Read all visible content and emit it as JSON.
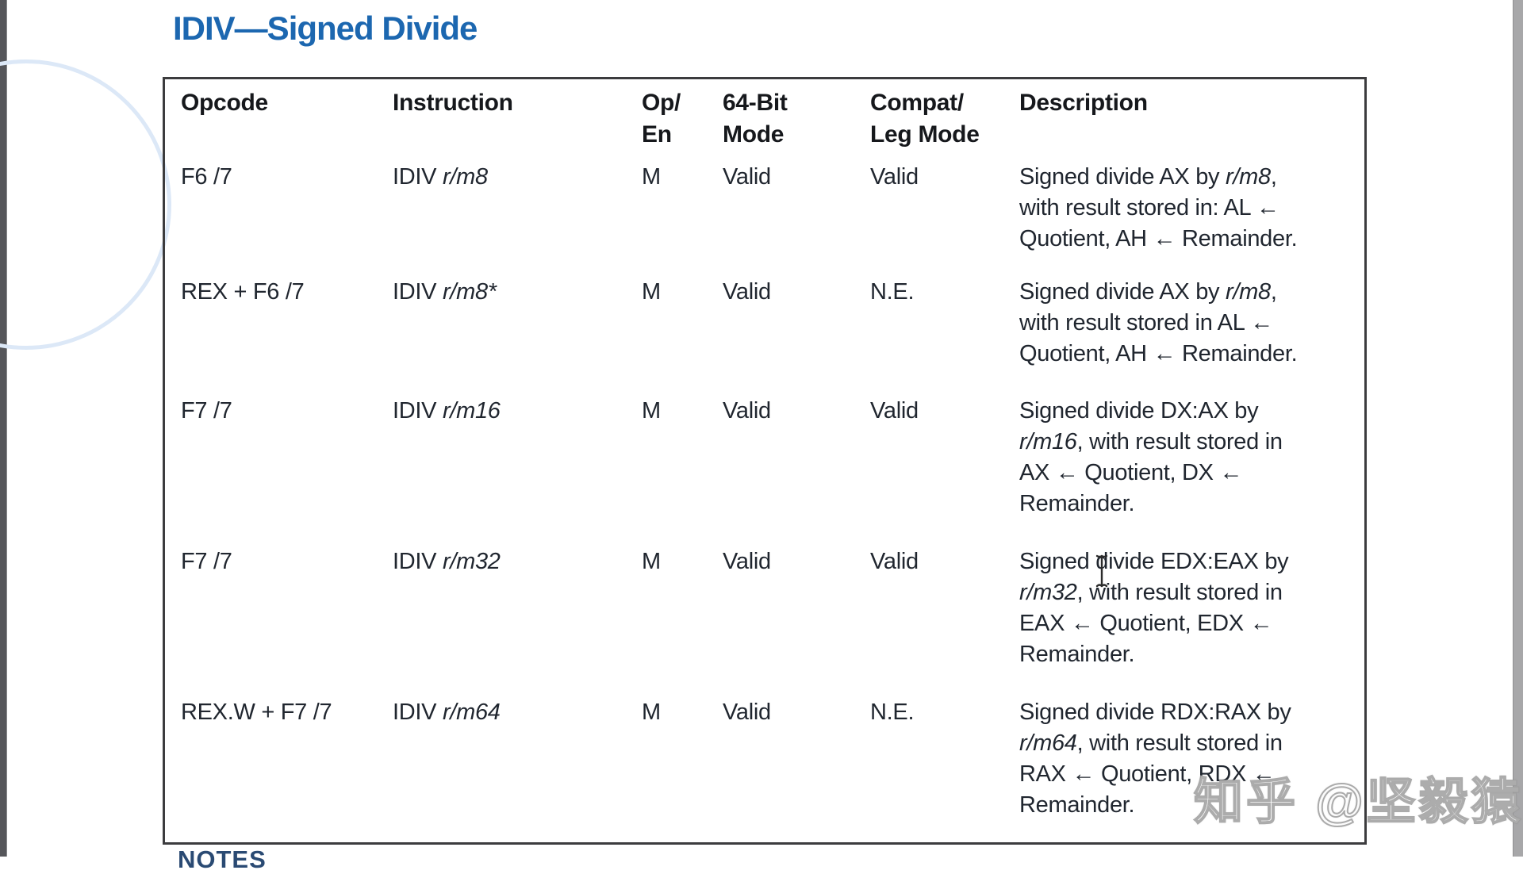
{
  "page": {
    "title": "IDIV—Signed Divide",
    "notes_label": "NOTES",
    "watermark_text": "知乎 @坚毅猿"
  },
  "table": {
    "headers": {
      "opcode": "Opcode",
      "instruction": "Instruction",
      "op_en": "Op/\nEn",
      "mode_64": "64-Bit\nMode",
      "compat_leg": "Compat/\nLeg Mode",
      "description": "Description"
    },
    "rows": [
      {
        "opcode": "F6 /7",
        "instruction": "IDIV r/m8",
        "op_en": "M",
        "mode_64": "Valid",
        "compat_leg": "Valid",
        "description": "Signed divide AX by r/m8,\nwith result stored in: AL ←\nQuotient, AH ← Remainder."
      },
      {
        "opcode": "REX + F6 /7",
        "instruction": "IDIV r/m8*",
        "op_en": "M",
        "mode_64": "Valid",
        "compat_leg": "N.E.",
        "description": "Signed divide AX by r/m8,\nwith result stored in AL ←\nQuotient, AH ← Remainder."
      },
      {
        "opcode": "F7 /7",
        "instruction": "IDIV r/m16",
        "op_en": "M",
        "mode_64": "Valid",
        "compat_leg": "Valid",
        "description": "Signed divide DX:AX by\nr/m16, with result stored in\nAX ← Quotient, DX ←\nRemainder."
      },
      {
        "opcode": "F7 /7",
        "instruction": "IDIV r/m32",
        "op_en": "M",
        "mode_64": "Valid",
        "compat_leg": "Valid",
        "description": "Signed divide EDX:EAX by\nr/m32, with result stored in\nEAX ← Quotient, EDX ←\nRemainder."
      },
      {
        "opcode": "REX.W + F7 /7",
        "instruction": "IDIV r/m64",
        "op_en": "M",
        "mode_64": "Valid",
        "compat_leg": "N.E.",
        "description": "Signed divide RDX:RAX by\nr/m64, with result stored in\nRAX ← Quotient, RDX ←\nRemainder."
      }
    ]
  },
  "colors": {
    "title_blue": "#1c67b0",
    "body_text": "#20262f",
    "table_border": "#3c3c3e",
    "notes_blue": "#2a4a73",
    "watermark_outline": "#9e9e9e",
    "accent_circle": "#dce8f7",
    "left_bar": "#55565a",
    "right_bar": "#a7a7a9"
  }
}
